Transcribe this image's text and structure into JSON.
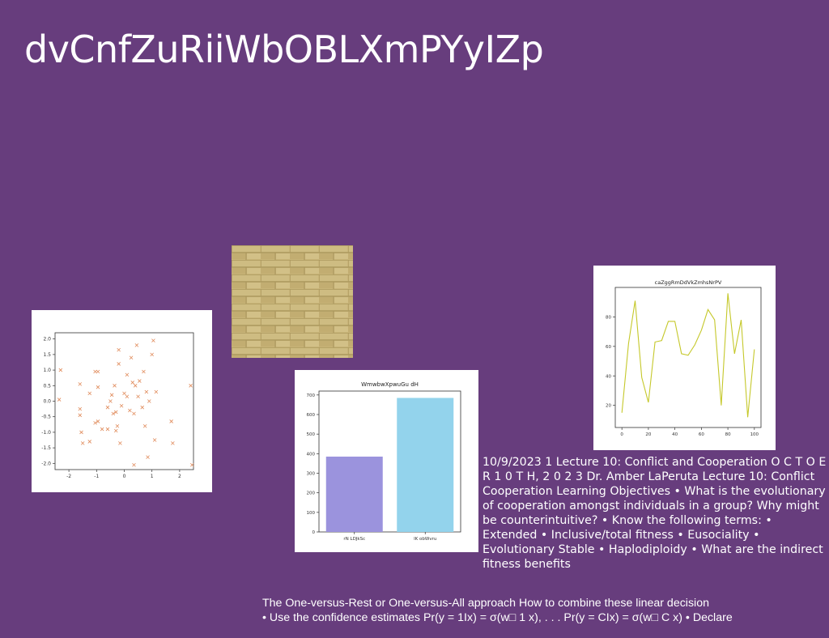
{
  "slide": {
    "title": "dvCnfZuRiiWbOBLXmPYyIZp",
    "body_text": "10/9/2023 1 Lecture 10: Conflict and Cooperation O C T O E R 1 0 T H, 2 0 2 3 Dr. Amber LaPeruta Lecture 10: Conflict Cooperation Learning Objectives • What is the evolutionary of cooperation amongst individuals in a group? Why might be counterintuitive? • Know the following terms: • Extended • Inclusive/total fitness • Eusociality • Evolutionary Stable • Haplodiploidy • What are the indirect fitness benefits",
    "caption_line1": "The One-versus-Rest or One-versus-All approach How to combine these linear decision",
    "caption_line2": "• Use the confidence estimates Pr(y = 1Ix) = σ(w□ 1 x), . . . Pr(y = CIx) = σ(w□ C x) • Declare",
    "background_color": "#673d7d",
    "wall_image": "yellow-brick-wall-photo"
  },
  "chart_data": [
    {
      "type": "scatter",
      "title": "",
      "marker": "x",
      "color": "#e08a5a",
      "xlim": [
        -2.5,
        2.5
      ],
      "ylim": [
        -2.2,
        2.2
      ],
      "xticks": [
        "-2",
        "-1",
        "0",
        "1",
        "2"
      ],
      "yticks": [
        "2.0",
        "1.5",
        "1.0",
        "0.5",
        "0.0",
        "-0.5",
        "-1.0",
        "-1.5",
        "-2.0"
      ],
      "points": [
        [
          -2.3,
          1.0
        ],
        [
          -2.35,
          0.05
        ],
        [
          -1.6,
          0.55
        ],
        [
          -1.6,
          -0.25
        ],
        [
          -1.6,
          -0.45
        ],
        [
          -1.55,
          -1.0
        ],
        [
          -1.5,
          -1.35
        ],
        [
          -1.25,
          0.25
        ],
        [
          -1.25,
          -1.3
        ],
        [
          -1.05,
          0.95
        ],
        [
          -1.05,
          -0.7
        ],
        [
          -0.95,
          0.95
        ],
        [
          -0.95,
          0.45
        ],
        [
          -0.95,
          -0.65
        ],
        [
          -0.8,
          -0.9
        ],
        [
          -0.6,
          -0.2
        ],
        [
          -0.6,
          -0.9
        ],
        [
          -0.5,
          0.0
        ],
        [
          -0.45,
          0.2
        ],
        [
          -0.4,
          -0.4
        ],
        [
          -0.35,
          0.5
        ],
        [
          -0.3,
          -0.35
        ],
        [
          -0.3,
          -0.95
        ],
        [
          -0.25,
          -0.8
        ],
        [
          -0.2,
          1.65
        ],
        [
          -0.2,
          1.2
        ],
        [
          -0.15,
          -1.35
        ],
        [
          -0.1,
          -0.15
        ],
        [
          0.0,
          0.25
        ],
        [
          0.1,
          0.85
        ],
        [
          0.1,
          0.15
        ],
        [
          0.2,
          -0.3
        ],
        [
          0.25,
          1.4
        ],
        [
          0.3,
          0.6
        ],
        [
          0.35,
          -0.4
        ],
        [
          0.35,
          -2.05
        ],
        [
          0.4,
          0.5
        ],
        [
          0.45,
          1.8
        ],
        [
          0.5,
          0.15
        ],
        [
          0.55,
          0.65
        ],
        [
          0.65,
          -0.2
        ],
        [
          0.7,
          0.95
        ],
        [
          0.75,
          -0.8
        ],
        [
          0.8,
          0.3
        ],
        [
          0.85,
          -1.8
        ],
        [
          0.9,
          0.0
        ],
        [
          1.0,
          1.5
        ],
        [
          1.05,
          1.95
        ],
        [
          1.1,
          -1.25
        ],
        [
          1.15,
          0.3
        ],
        [
          1.7,
          -0.65
        ],
        [
          1.75,
          -1.35
        ],
        [
          2.4,
          0.5
        ],
        [
          2.45,
          -2.05
        ]
      ]
    },
    {
      "type": "bar",
      "title": "WmwbwXpwuGu dH",
      "categories": [
        "rN LDJkSc",
        "lK obWvru"
      ],
      "values": [
        385,
        685
      ],
      "colors": [
        "#9b93dd",
        "#93d3ec"
      ],
      "ylim": [
        0,
        720
      ],
      "yticks": [
        "0",
        "100",
        "200",
        "300",
        "400",
        "500",
        "600",
        "700"
      ]
    },
    {
      "type": "line",
      "title": "caZggRmDdVkZmhsNrPV",
      "color": "#c5c82a",
      "xlim": [
        -5,
        105
      ],
      "ylim": [
        5,
        100
      ],
      "xticks": [
        "0",
        "20",
        "40",
        "60",
        "80",
        "100"
      ],
      "yticks": [
        "20",
        "40",
        "60",
        "80"
      ],
      "x": [
        0,
        5,
        10,
        15,
        20,
        25,
        30,
        35,
        40,
        45,
        50,
        55,
        60,
        65,
        70,
        75,
        80,
        85,
        90,
        95,
        100
      ],
      "y": [
        15,
        62,
        91,
        39,
        22,
        63,
        64,
        77,
        77,
        55,
        54,
        61,
        71,
        85,
        78,
        20,
        96,
        55,
        78,
        12,
        58
      ]
    }
  ]
}
